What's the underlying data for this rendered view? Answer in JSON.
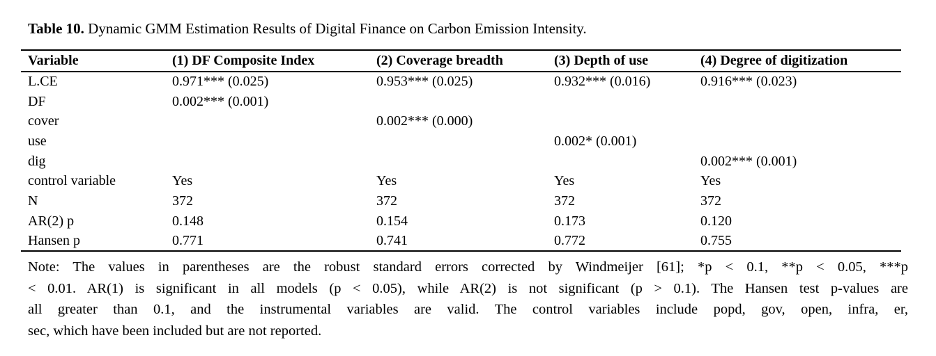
{
  "title": {
    "label": "Table 10.",
    "text": "Dynamic GMM Estimation Results of Digital Finance on Carbon Emission Intensity."
  },
  "table": {
    "columns": [
      "Variable",
      "(1) DF Composite Index",
      "(2) Coverage breadth",
      "(3) Depth of use",
      "(4) Degree of digitization"
    ],
    "rows": [
      [
        "L.CE",
        "0.971*** (0.025)",
        "0.953*** (0.025)",
        "0.932*** (0.016)",
        "0.916*** (0.023)"
      ],
      [
        "DF",
        "0.002*** (0.001)",
        "",
        "",
        ""
      ],
      [
        "cover",
        "",
        "0.002*** (0.000)",
        "",
        ""
      ],
      [
        "use",
        "",
        "",
        "0.002* (0.001)",
        ""
      ],
      [
        "dig",
        "",
        "",
        "",
        "0.002*** (0.001)"
      ],
      [
        "control variable",
        "Yes",
        "Yes",
        "Yes",
        "Yes"
      ],
      [
        "N",
        "372",
        "372",
        "372",
        "372"
      ],
      [
        "AR(2) p",
        "0.148",
        "0.154",
        "0.173",
        "0.120"
      ],
      [
        "Hansen p",
        "0.771",
        "0.741",
        "0.772",
        "0.755"
      ]
    ]
  },
  "note": {
    "lines": [
      "Note: The values in parentheses are the robust standard errors corrected by Windmeijer [61]; *p < 0.1, **p < 0.05, ***p",
      "< 0.01. AR(1) is significant in all models (p < 0.05), while AR(2) is not significant (p > 0.1). The Hansen test p-values are",
      "all greater than 0.1, and the instrumental variables are valid. The control variables include popd, gov, open, infra, er,",
      "sec, which have been included but are not reported."
    ]
  }
}
